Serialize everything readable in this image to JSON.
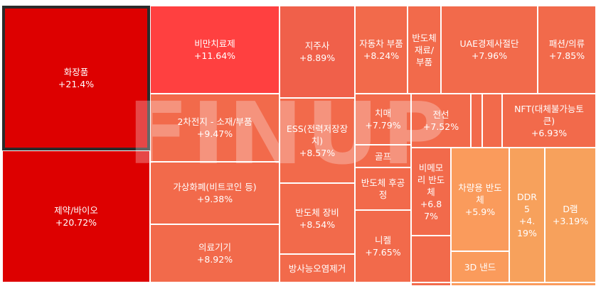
{
  "watermark": "FINUP",
  "colors": {
    "hot_red": "#dd0000",
    "red_pink": "#ff4040",
    "coral": "#f26a4b",
    "orange_red": "#f0604a",
    "light_orange": "#fa9b5c",
    "orange": "#f58c55",
    "tan_orange": "#f7a15c",
    "border": "#ffffff",
    "selected_border": "#2b2b2b"
  },
  "tiles": [
    {
      "name": "화장품",
      "pct": "+21.4%",
      "selected": true
    },
    {
      "name": "제약/바이오",
      "pct": "+20.72%"
    },
    {
      "name": "비만치료제",
      "pct": "+11.64%"
    },
    {
      "name": "2차전지 - 소재/부품",
      "pct": "+9.47%"
    },
    {
      "name": "가상화폐(비트코인 등)",
      "pct": "+9.38%"
    },
    {
      "name": "의료기기",
      "pct": "+8.92%"
    },
    {
      "name": "지주사",
      "pct": "+8.89%"
    },
    {
      "name": "ESS(전력저장장치)",
      "pct": "+8.57%"
    },
    {
      "name": "반도체 장비",
      "pct": "+8.54%"
    },
    {
      "name": "방사능오염제거",
      "pct": ""
    },
    {
      "name": "자동차 부품",
      "pct": "+8.24%"
    },
    {
      "name": "반도체 재료/부품",
      "pct": ""
    },
    {
      "name": "UAE경제사절단",
      "pct": "+7.96%"
    },
    {
      "name": "패션/의류",
      "pct": "+7.85%"
    },
    {
      "name": "치매",
      "pct": "+7.79%"
    },
    {
      "name": "골프",
      "pct": ""
    },
    {
      "name": "반도체 후공정",
      "pct": ""
    },
    {
      "name": "니켈",
      "pct": "+7.65%"
    },
    {
      "name": "전선",
      "pct": "+7.52%"
    },
    {
      "name": "",
      "pct": ""
    },
    {
      "name": "",
      "pct": ""
    },
    {
      "name": "NFT(대체불가능토큰)",
      "pct": "+6.93%"
    },
    {
      "name": "비메모리 반도체",
      "pct": "+6.87%"
    },
    {
      "name": "",
      "pct": ""
    },
    {
      "name": "차량용 반도체",
      "pct": "+5.9%"
    },
    {
      "name": "3D 낸드",
      "pct": ""
    },
    {
      "name": "DDR5",
      "pct": "+4.19%"
    },
    {
      "name": "D램",
      "pct": "+3.19%"
    },
    {
      "name": "",
      "pct": ""
    },
    {
      "name": "",
      "pct": ""
    }
  ]
}
